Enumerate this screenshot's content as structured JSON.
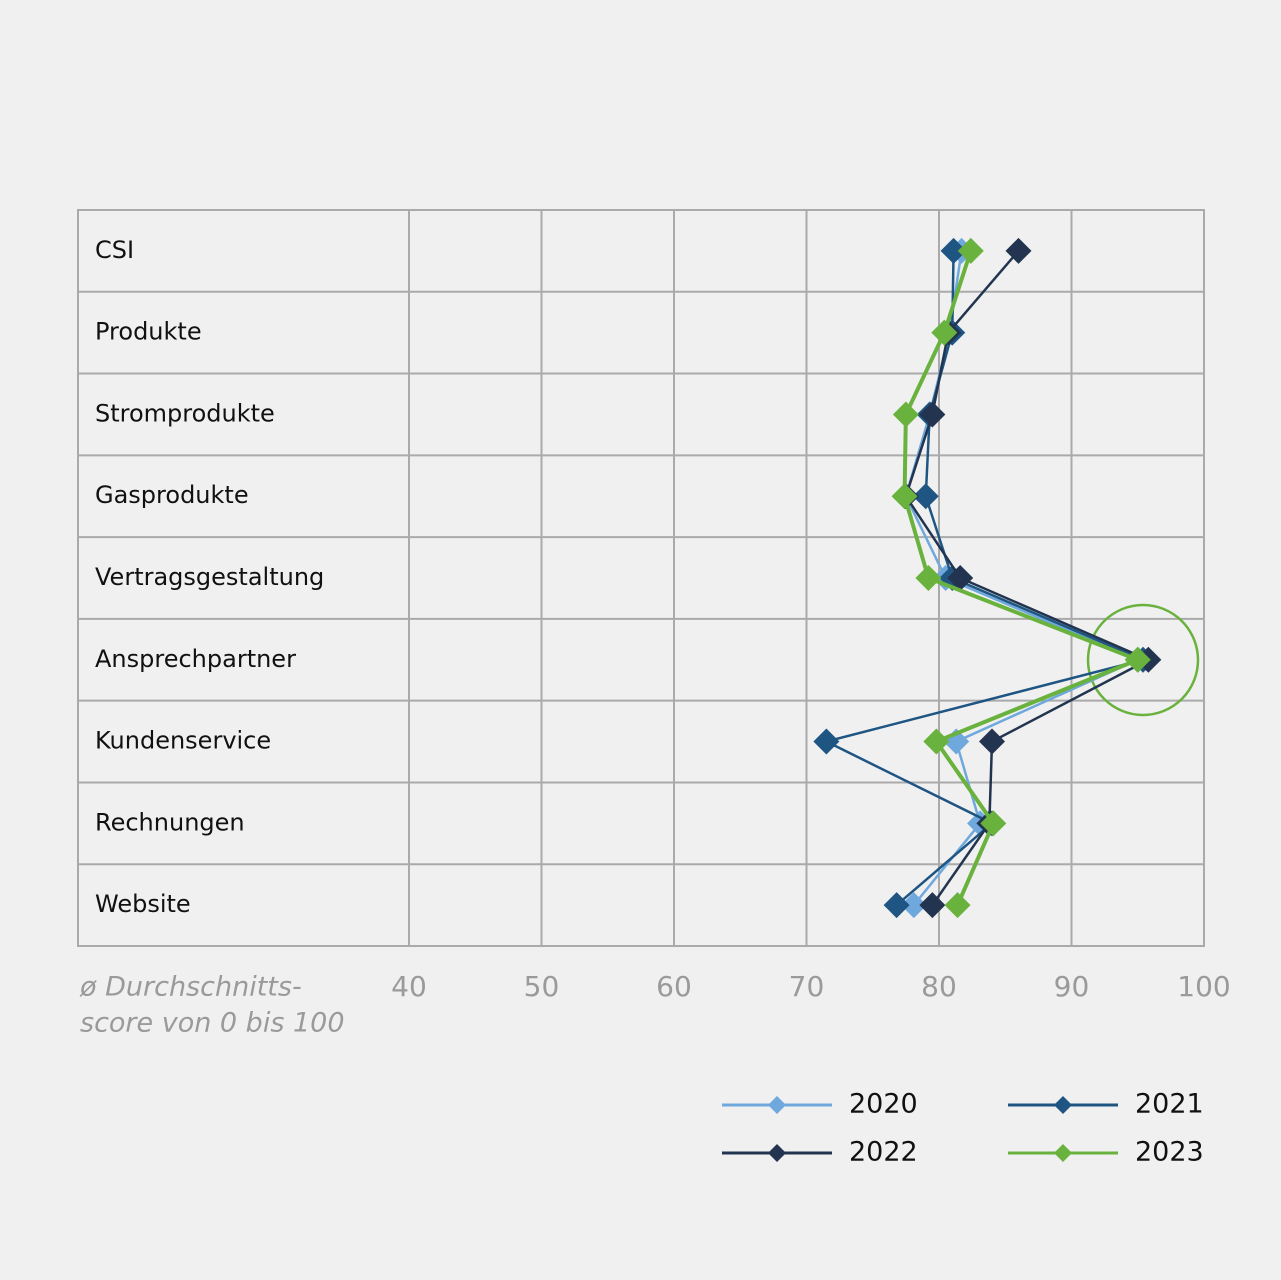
{
  "chart_data": {
    "type": "line",
    "orientation": "horizontal",
    "categories": [
      "CSI",
      "Produkte",
      "Stromprodukte",
      "Gasprodukte",
      "Vertragsgestaltung",
      "Ansprechpartner",
      "Kundenservice",
      "Rechnungen",
      "Website"
    ],
    "series": [
      {
        "name": "2020",
        "color": "#6fa8dc",
        "values": [
          81.7,
          80.8,
          79.3,
          77.5,
          80.5,
          95.0,
          81.3,
          83.1,
          78.1
        ]
      },
      {
        "name": "2021",
        "color": "#1f5582",
        "values": [
          81.1,
          81.0,
          79.3,
          79.0,
          81.0,
          95.4,
          71.5,
          84.0,
          76.8
        ]
      },
      {
        "name": "2022",
        "color": "#22344f",
        "values": [
          86.0,
          80.7,
          79.5,
          77.5,
          81.6,
          95.8,
          84.0,
          83.8,
          79.5
        ]
      },
      {
        "name": "2023",
        "color": "#6ab23e",
        "values": [
          82.4,
          80.4,
          77.5,
          77.4,
          79.2,
          95.0,
          79.8,
          84.1,
          81.4
        ]
      }
    ],
    "x_label": [
      "ø Durchschnitts-",
      "score von 0 bis 100"
    ],
    "xlim": [
      40,
      100
    ],
    "xticks": [
      40,
      50,
      60,
      70,
      80,
      90,
      100
    ],
    "grid": true
  }
}
